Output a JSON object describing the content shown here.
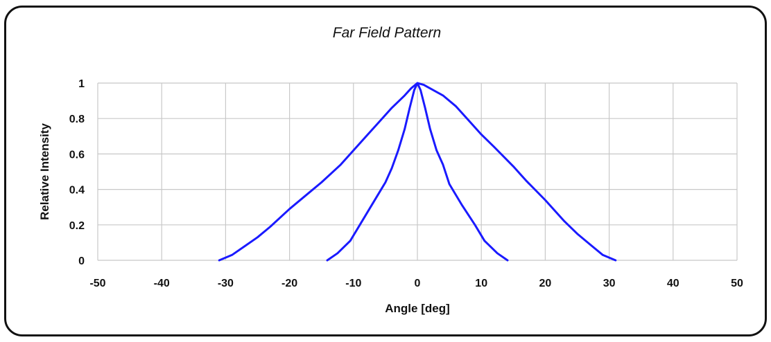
{
  "chart_data": {
    "type": "line",
    "title": "Far Field Pattern",
    "xlabel": "Angle [deg]",
    "ylabel": "Relative Intensity",
    "xlim": [
      -50,
      50
    ],
    "ylim": [
      0,
      1
    ],
    "x_ticks": [
      -50,
      -40,
      -30,
      -20,
      -10,
      0,
      10,
      20,
      30,
      40,
      50
    ],
    "y_ticks": [
      0,
      0.2,
      0.4,
      0.6,
      0.8,
      1
    ],
    "grid": true,
    "line_color": "#1a1aff",
    "grid_color": "#c8c8c8",
    "series": [
      {
        "x": [
          -31,
          -29,
          -27,
          -25,
          -23,
          -20,
          -17,
          -15,
          -12,
          -10,
          -8,
          -6,
          -4,
          -2,
          -1,
          0,
          1,
          2,
          4,
          6,
          8,
          10,
          12,
          15,
          17,
          20,
          23,
          25,
          27,
          29,
          31
        ],
        "y": [
          0.0,
          0.03,
          0.08,
          0.13,
          0.19,
          0.29,
          0.38,
          0.44,
          0.54,
          0.62,
          0.7,
          0.78,
          0.86,
          0.93,
          0.97,
          1.0,
          0.99,
          0.97,
          0.93,
          0.87,
          0.79,
          0.71,
          0.64,
          0.53,
          0.45,
          0.34,
          0.22,
          0.15,
          0.09,
          0.03,
          0.0
        ]
      },
      {
        "x": [
          -14.1,
          -12.5,
          -10.5,
          -9,
          -7.5,
          -6,
          -5,
          -4,
          -3,
          -2,
          -1.2,
          -0.5,
          0,
          0.5,
          1.2,
          2,
          3,
          4,
          5,
          7,
          9,
          10.5,
          12.5,
          14.1
        ],
        "y": [
          0.0,
          0.04,
          0.11,
          0.2,
          0.29,
          0.38,
          0.44,
          0.52,
          0.62,
          0.74,
          0.86,
          0.96,
          1.0,
          0.96,
          0.86,
          0.74,
          0.62,
          0.54,
          0.43,
          0.31,
          0.2,
          0.11,
          0.04,
          0.0
        ]
      }
    ]
  }
}
